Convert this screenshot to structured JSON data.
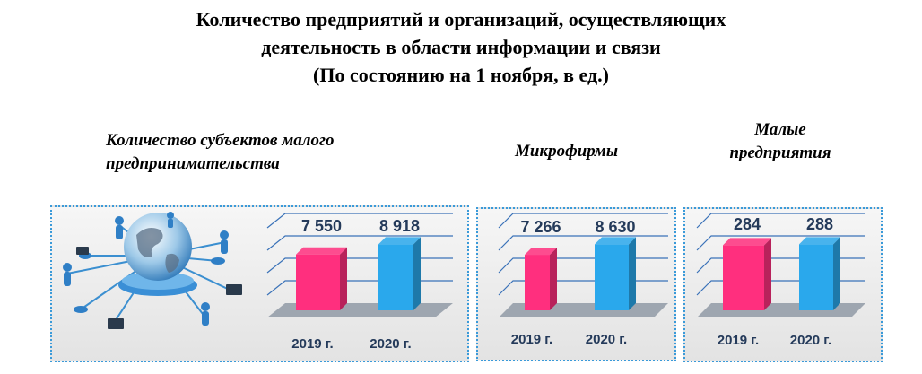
{
  "title": {
    "line1": "Количество предприятий и организаций, осуществляющих",
    "line2": "деятельность в области информации и связи",
    "line3": "(По состоянию на 1 ноября, в ед.)"
  },
  "colors": {
    "bar_2019": "#ff2f7e",
    "bar_2020": "#2aa8ec",
    "panel_border": "#3a9ad9"
  },
  "chart_data": [
    {
      "type": "bar",
      "title_lines": [
        "Количество субъектов малого",
        "предпринимательства"
      ],
      "categories": [
        "2019 г.",
        "2020 г."
      ],
      "values": [
        7550,
        8918
      ],
      "value_labels": [
        "7 550",
        "8 918"
      ]
    },
    {
      "type": "bar",
      "title_lines": [
        "Микрофирмы"
      ],
      "categories": [
        "2019 г.",
        "2020 г."
      ],
      "values": [
        7266,
        8630
      ],
      "value_labels": [
        "7 266",
        "8 630"
      ]
    },
    {
      "type": "bar",
      "title_lines": [
        "Малые",
        "предприятия"
      ],
      "categories": [
        "2019 г.",
        "2020 г."
      ],
      "values": [
        284,
        288
      ],
      "value_labels": [
        "284",
        "288"
      ]
    }
  ]
}
